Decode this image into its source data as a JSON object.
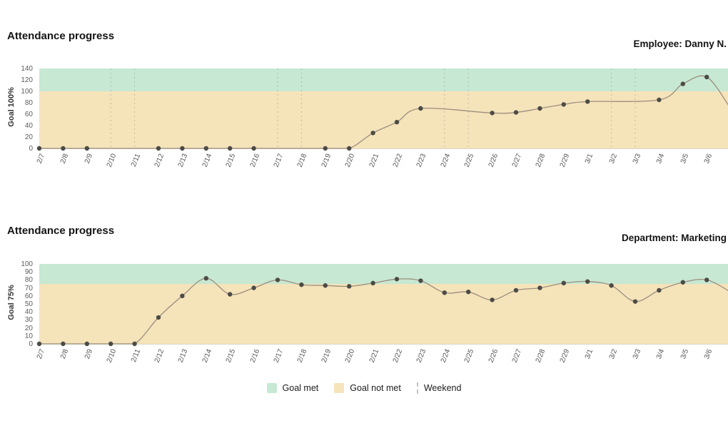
{
  "colors": {
    "goal_met_band": "#c7e8d3",
    "goal_not_met_band": "#f5e3ba",
    "line": "#9b8e7d",
    "point": "#4c4b46",
    "weekend_line": "rgba(145,145,145,0.5)",
    "axis_text": "#5c5c5c"
  },
  "legend": {
    "items": [
      {
        "label": "Goal met",
        "type": "swatch",
        "color": "#c7e8d3"
      },
      {
        "label": "Goal not met",
        "type": "swatch",
        "color": "#f5e3ba"
      },
      {
        "label": "Weekend",
        "type": "dash"
      }
    ]
  },
  "chart_data": [
    {
      "type": "line",
      "title": "Attendance progress",
      "context_label": "Employee: Danny N.",
      "ylabel": "Goal 100%",
      "ylim": [
        0,
        140
      ],
      "ytick_step": 20,
      "goal_value": 100,
      "grid": false,
      "show_weekend_lines": true,
      "x": [
        "2/7",
        "2/8",
        "2/9",
        "2/10",
        "2/11",
        "2/12",
        "2/13",
        "2/14",
        "2/15",
        "2/16",
        "2/17",
        "2/18",
        "2/19",
        "2/20",
        "2/21",
        "2/22",
        "2/23",
        "2/24",
        "2/25",
        "2/26",
        "2/27",
        "2/28",
        "2/29",
        "3/1",
        "3/2",
        "3/3",
        "3/4",
        "3/5",
        "3/6",
        "3/7"
      ],
      "values": [
        0,
        0,
        0,
        null,
        null,
        0,
        0,
        0,
        0,
        0,
        null,
        null,
        0,
        0,
        27,
        46,
        70,
        null,
        null,
        62,
        63,
        70,
        77,
        82,
        null,
        null,
        85,
        113,
        125,
        70
      ],
      "weekend_dates": [
        "2/10",
        "2/11",
        "2/17",
        "2/18",
        "2/24",
        "2/25",
        "3/2",
        "3/3"
      ]
    },
    {
      "type": "line",
      "title": "Attendance progress",
      "context_label": "Department: Marketing",
      "ylabel": "Goal 75%",
      "ylim": [
        0,
        100
      ],
      "ytick_step": 10,
      "goal_value": 75,
      "grid": false,
      "show_weekend_lines": false,
      "x": [
        "2/7",
        "2/8",
        "2/9",
        "2/10",
        "2/11",
        "2/12",
        "2/13",
        "2/14",
        "2/15",
        "2/16",
        "2/17",
        "2/18",
        "2/19",
        "2/20",
        "2/21",
        "2/22",
        "2/23",
        "2/24",
        "2/25",
        "2/26",
        "2/27",
        "2/28",
        "2/29",
        "3/1",
        "3/2",
        "3/3",
        "3/4",
        "3/5",
        "3/6",
        "3/7"
      ],
      "values": [
        0,
        0,
        0,
        0,
        0,
        33,
        60,
        82,
        62,
        70,
        80,
        74,
        73,
        72,
        76,
        81,
        79,
        64,
        65,
        55,
        67,
        70,
        76,
        78,
        73,
        53,
        67,
        77,
        80,
        65
      ],
      "weekend_dates": [
        "2/10",
        "2/11",
        "2/17",
        "2/18",
        "2/24",
        "2/25",
        "3/2",
        "3/3"
      ]
    }
  ]
}
